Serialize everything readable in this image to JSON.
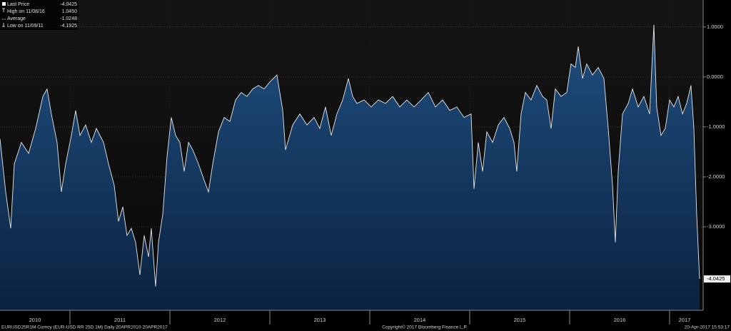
{
  "chart_data": {
    "type": "area",
    "legend": [
      {
        "label": "Last Price",
        "value": "-4.0425"
      },
      {
        "label": "High on 11/08/16",
        "value": "1.0450"
      },
      {
        "label": "Average",
        "value": "-1.0248"
      },
      {
        "label": "Low on 11/09/11",
        "value": "-4.1925"
      }
    ],
    "last_label": "-4.0425",
    "footer_left": "EURUSD25R1M Curncy (EUR-USD RR 25D 1M)  Daily 20APR2010-20APR2017",
    "footer_center": "Copyright© 2017 Bloomberg Finance L.P.",
    "footer_right": "20-Apr-2017 15:53:17",
    "line_color": "#e8e8e8",
    "fill_color": "#163a62",
    "grid": true,
    "xlim": [
      2010.3,
      2017.336
    ],
    "ylim": [
      -4.67,
      1.54
    ],
    "yticks": [
      {
        "value": 1,
        "label": "1.0000"
      },
      {
        "value": 0,
        "label": "0.0000"
      },
      {
        "value": -1,
        "label": "-1.0000"
      },
      {
        "value": -2,
        "label": "-2.0000"
      },
      {
        "value": -3,
        "label": "-3.0000"
      }
    ],
    "xticks": [
      {
        "value": 2010.65,
        "label": "2010"
      },
      {
        "value": 2011.5,
        "label": "2011"
      },
      {
        "value": 2012.5,
        "label": "2012"
      },
      {
        "value": 2013.5,
        "label": "2013"
      },
      {
        "value": 2014.5,
        "label": "2014"
      },
      {
        "value": 2015.5,
        "label": "2015"
      },
      {
        "value": 2016.5,
        "label": "2016"
      },
      {
        "value": 2017.15,
        "label": "2017"
      }
    ],
    "x": [
      2010.3,
      2010.357,
      2010.407,
      2010.443,
      2010.514,
      2010.586,
      2010.657,
      2010.729,
      2010.771,
      2010.814,
      2010.871,
      2010.914,
      2010.957,
      2011.014,
      2011.057,
      2011.1,
      2011.157,
      2011.214,
      2011.264,
      2011.336,
      2011.386,
      2011.443,
      2011.486,
      2011.529,
      2011.571,
      2011.614,
      2011.657,
      2011.7,
      2011.743,
      2011.786,
      2011.814,
      2011.857,
      2011.886,
      2011.929,
      2011.971,
      2012.014,
      2012.057,
      2012.1,
      2012.143,
      2012.186,
      2012.229,
      2012.286,
      2012.336,
      2012.386,
      2012.429,
      2012.486,
      2012.543,
      2012.6,
      2012.657,
      2012.714,
      2012.771,
      2012.829,
      2012.886,
      2012.943,
      2013.0,
      2013.071,
      2013.129,
      2013.157,
      2013.229,
      2013.3,
      2013.371,
      2013.443,
      2013.5,
      2013.557,
      2013.614,
      2013.671,
      2013.729,
      2013.786,
      2013.829,
      2013.871,
      2013.943,
      2014.014,
      2014.086,
      2014.157,
      2014.229,
      2014.3,
      2014.371,
      2014.443,
      2014.514,
      2014.586,
      2014.657,
      2014.729,
      2014.8,
      2014.871,
      2014.943,
      2015.014,
      2015.043,
      2015.086,
      2015.129,
      2015.171,
      2015.229,
      2015.286,
      2015.343,
      2015.4,
      2015.443,
      2015.471,
      2015.514,
      2015.557,
      2015.614,
      2015.671,
      2015.729,
      2015.771,
      2015.814,
      2015.857,
      2015.914,
      2015.971,
      2016.014,
      2016.057,
      2016.086,
      2016.129,
      2016.171,
      2016.229,
      2016.286,
      2016.343,
      2016.386,
      2016.429,
      2016.457,
      2016.486,
      2016.529,
      2016.586,
      2016.629,
      2016.686,
      2016.743,
      2016.8,
      2016.843,
      2016.871,
      2016.914,
      2016.957,
      2017.0,
      2017.043,
      2017.086,
      2017.129,
      2017.171,
      2017.214,
      2017.243,
      2017.271,
      2017.3
    ],
    "values": [
      -1.24,
      -2.3,
      -3.03,
      -1.74,
      -1.31,
      -1.53,
      -1.03,
      -0.39,
      -0.24,
      -0.74,
      -1.31,
      -2.3,
      -1.74,
      -1.17,
      -0.67,
      -1.17,
      -0.96,
      -1.31,
      -1.03,
      -1.31,
      -1.74,
      -2.17,
      -2.89,
      -2.6,
      -3.17,
      -3.03,
      -3.31,
      -3.96,
      -3.17,
      -3.6,
      -3.03,
      -4.1925,
      -3.31,
      -2.74,
      -1.6,
      -0.81,
      -1.17,
      -1.31,
      -1.89,
      -1.31,
      -1.46,
      -1.74,
      -2.03,
      -2.3,
      -1.74,
      -1.1,
      -0.81,
      -0.89,
      -0.46,
      -0.31,
      -0.39,
      -0.24,
      -0.17,
      -0.24,
      -0.1,
      0.04,
      -0.67,
      -1.46,
      -0.96,
      -0.74,
      -0.96,
      -0.81,
      -1.03,
      -0.6,
      -1.17,
      -0.74,
      -0.46,
      -0.03,
      -0.39,
      -0.53,
      -0.46,
      -0.6,
      -0.46,
      -0.53,
      -0.39,
      -0.6,
      -0.46,
      -0.6,
      -0.46,
      -0.31,
      -0.6,
      -0.46,
      -0.67,
      -0.6,
      -0.81,
      -0.74,
      -2.24,
      -1.31,
      -1.89,
      -1.1,
      -1.31,
      -0.96,
      -0.81,
      -1.03,
      -1.31,
      -1.89,
      -0.74,
      -0.31,
      -0.46,
      -0.17,
      -0.39,
      -0.46,
      -1.03,
      -0.24,
      -0.39,
      -0.31,
      0.26,
      0.19,
      0.61,
      -0.03,
      0.26,
      0.04,
      0.19,
      -0.03,
      -1.03,
      -2.17,
      -3.31,
      -1.89,
      -0.74,
      -0.53,
      -0.24,
      -0.6,
      -0.39,
      -0.74,
      1.045,
      -0.6,
      -1.17,
      -1.03,
      -0.46,
      -0.6,
      -0.39,
      -0.74,
      -0.53,
      -0.17,
      -1.03,
      -2.74,
      -4.0425
    ]
  }
}
